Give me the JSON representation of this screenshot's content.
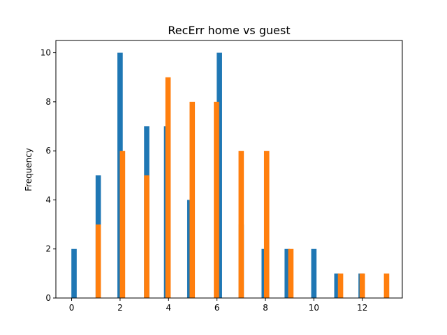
{
  "chart_data": {
    "type": "bar",
    "title": "RecErr home vs guest",
    "xlabel": "",
    "ylabel": "Frequency",
    "xlim": [
      -0.65,
      13.65
    ],
    "ylim": [
      0,
      10.5
    ],
    "xticks": [
      0,
      2,
      4,
      6,
      8,
      10,
      12
    ],
    "yticks": [
      0,
      2,
      4,
      6,
      8,
      10
    ],
    "grid": false,
    "series": [
      {
        "color": "#1f77b4",
        "bar_width": 0.22,
        "x": [
          0.1,
          1.1,
          2.0,
          3.1,
          3.92,
          4.88,
          6.1,
          7.0,
          7.95,
          8.9,
          10.0,
          10.95,
          11.95
        ],
        "values": [
          2,
          5,
          10,
          7,
          7,
          4,
          10,
          3,
          2,
          2,
          2,
          1,
          1
        ]
      },
      {
        "color": "#ff7f0e",
        "bar_width": 0.22,
        "x": [
          1.1,
          2.1,
          3.1,
          3.98,
          4.98,
          5.98,
          7.0,
          8.05,
          9.05,
          11.1,
          12.0,
          13.0
        ],
        "values": [
          3,
          6,
          5,
          9,
          8,
          8,
          6,
          6,
          2,
          1,
          1,
          1
        ]
      }
    ]
  }
}
